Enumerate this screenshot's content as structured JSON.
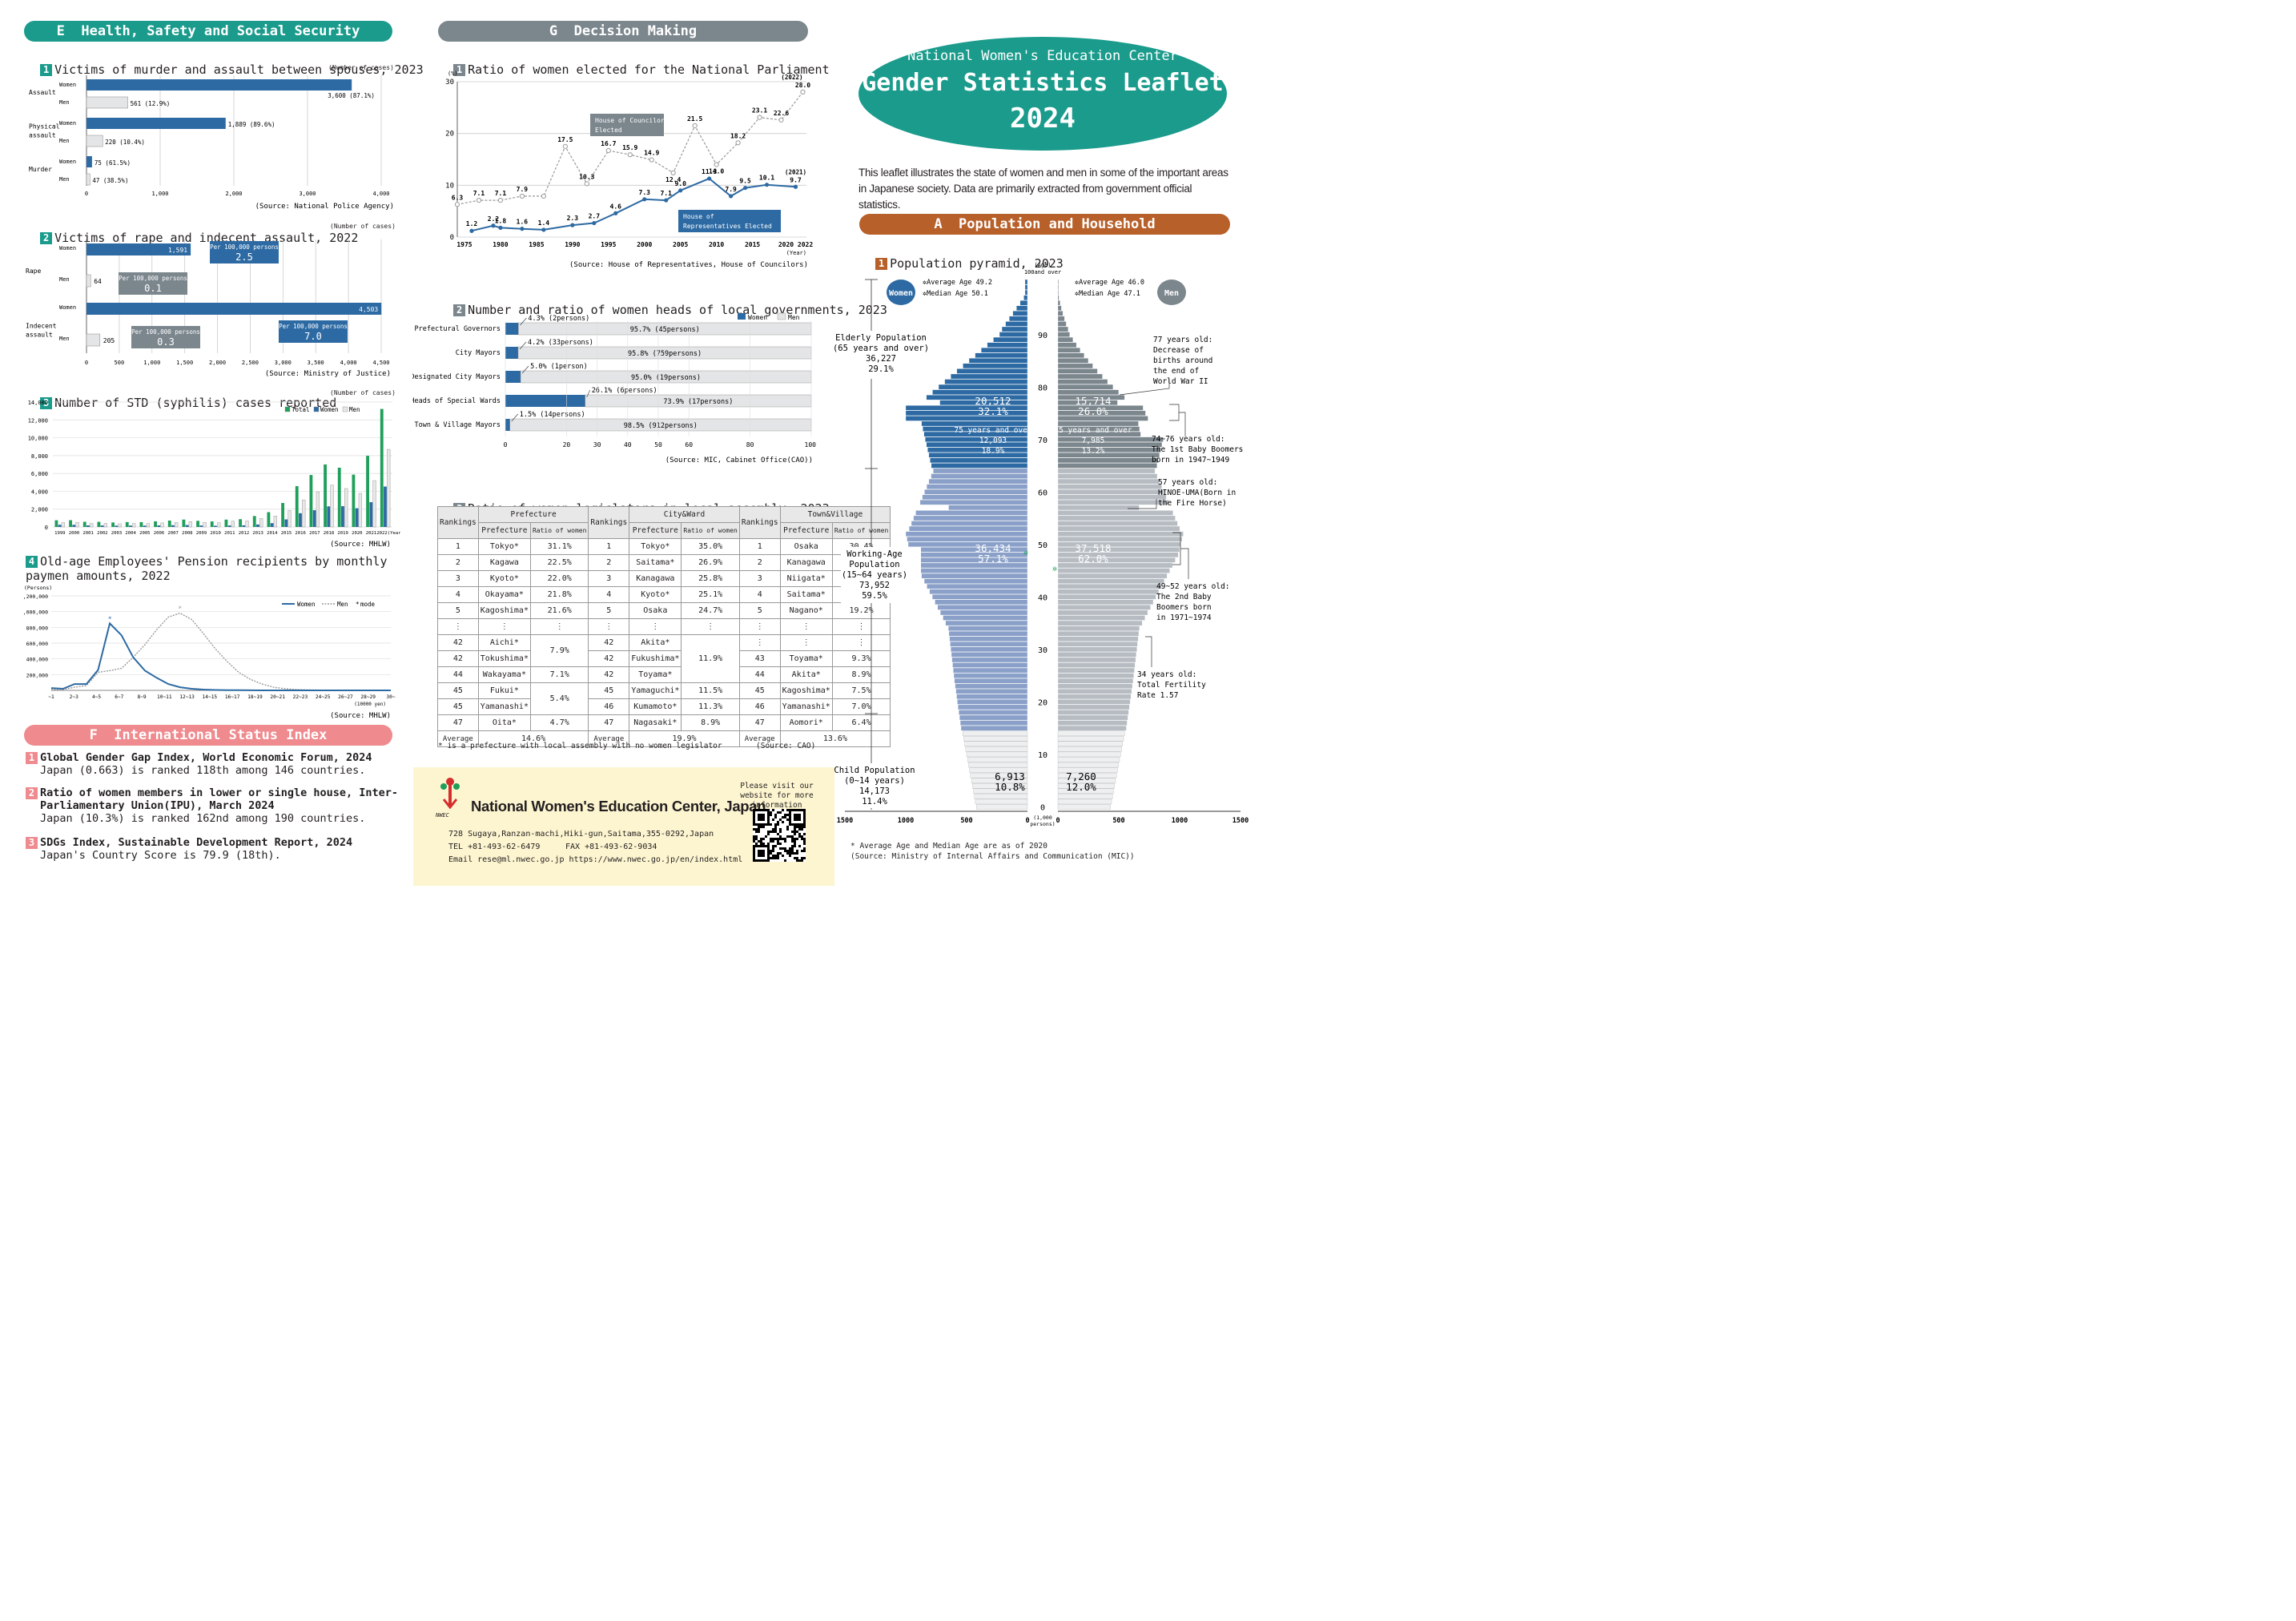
{
  "sections": {
    "E": "E  Health, Safety and Social Security",
    "F": "F  International Status Index",
    "G": "G  Decision Making",
    "A": "A  Population and Household"
  },
  "header": {
    "org": "National Women's Education Center",
    "title": "Gender Statistics Leaflet",
    "year": "2024",
    "intro": "This leaflet illustrates the state of women and men in some of the important areas in Japanese society. Data are primarily extracted from government official statistics."
  },
  "colors": {
    "teal": "#1a9b8c",
    "gray": "#7b868d",
    "pink": "#ef8a8e",
    "brown": "#b8602a",
    "blue": "#2d6aa3",
    "lightgray": "#e4e5e6",
    "green": "#1f9f5a"
  },
  "e1": {
    "num": "1",
    "title": "Victims of murder and assault between spouses, 2023",
    "unit": "(Number of cases)",
    "groups": [
      {
        "label": "Assault",
        "women": 3600,
        "women_label": "3,600 (87.1%)",
        "men": 561,
        "men_label": "561 (12.9%)"
      },
      {
        "label": "Physical assault",
        "women": 1889,
        "women_label": "1,889 (89.6%)",
        "men": 220,
        "men_label": "220 (10.4%)"
      },
      {
        "label": "Murder",
        "women": 75,
        "women_label": "75 (61.5%)",
        "men": 47,
        "men_label": "47 (38.5%)"
      }
    ],
    "women_label": "Women",
    "men_label": "Men",
    "ticks": [
      "0",
      "1,000",
      "2,000",
      "3,000",
      "4,000"
    ],
    "source": "(Source: National Police Agency)"
  },
  "e2": {
    "num": "2",
    "title": "Victims of rape and indecent assault, 2022",
    "unit": "(Number of cases)",
    "rape_label": "Rape",
    "indecent_label": "Indecent assault",
    "rape_women": 1591,
    "rape_women_label": "1,591",
    "rape_men": 64,
    "rape_men_label": "64",
    "ind_women": 4503,
    "ind_women_label": "4,503",
    "ind_men": 205,
    "ind_men_label": "205",
    "per": "Per 100,000 persons",
    "rape_women_rate": "2.5",
    "rape_men_rate": "0.1",
    "ind_women_rate": "7.0",
    "ind_men_rate": "0.3",
    "ticks": [
      "0",
      "500",
      "1,000",
      "1,500",
      "2,000",
      "2,500",
      "3,000",
      "3,500",
      "4,000",
      "4,500"
    ],
    "source": "(Source: Ministry of Justice)"
  },
  "e3": {
    "num": "3",
    "title": "Number of STD (syphilis) cases reported",
    "unit": "(Number of cases)",
    "legend": [
      "Total",
      "Women",
      "Men"
    ],
    "years": [
      "1999",
      "2000",
      "2001",
      "2002",
      "2003",
      "2004",
      "2005",
      "2006",
      "2007",
      "2008",
      "2009",
      "2010",
      "2011",
      "2012",
      "2013",
      "2014",
      "2015",
      "2016",
      "2017",
      "2018",
      "2019",
      "2020",
      "2021",
      "2022(Year)"
    ],
    "total": [
      753,
      759,
      585,
      575,
      509,
      549,
      543,
      637,
      719,
      831,
      691,
      621,
      827,
      875,
      1228,
      1661,
      2690,
      4575,
      5826,
      7007,
      6642,
      5867,
      7978,
      13228
    ],
    "women": [
      250,
      240,
      180,
      170,
      150,
      160,
      150,
      180,
      200,
      220,
      170,
      140,
      170,
      190,
      280,
      430,
      850,
      1540,
      1880,
      2310,
      2330,
      2100,
      2780,
      4530
    ],
    "men": [
      500,
      520,
      400,
      400,
      360,
      390,
      390,
      460,
      520,
      610,
      520,
      480,
      650,
      680,
      950,
      1230,
      1840,
      3040,
      3940,
      4700,
      4310,
      3770,
      5200,
      8700
    ],
    "yticks": [
      "0",
      "2,000",
      "4,000",
      "6,000",
      "8,000",
      "10,000",
      "12,000",
      "14,000"
    ],
    "source": "(Source: MHLW)"
  },
  "e4": {
    "num": "4",
    "title": "Old-age Employees' Pension recipients by monthly paymen amounts, 2022",
    "yunit": "(Persons)",
    "legend": [
      "Women",
      "Men",
      "mode"
    ],
    "yticks": [
      "200,000",
      "400,000",
      "600,000",
      "800,000",
      "1,000,000",
      "1,200,000"
    ],
    "xticks": [
      "~1",
      "2~3",
      "4~5",
      "6~7",
      "8~9",
      "10~11",
      "12~13",
      "14~15",
      "16~17",
      "18~19",
      "20~21",
      "22~23",
      "24~25",
      "26~27",
      "28~29",
      "30~"
    ],
    "xunit": "(10000 yen)",
    "women": [
      30000,
      20000,
      80000,
      80000,
      260000,
      850000,
      700000,
      420000,
      250000,
      160000,
      80000,
      40000,
      20000,
      10000,
      5000,
      3000,
      2000,
      1000,
      500,
      300,
      200,
      100,
      100,
      100,
      100,
      100,
      100,
      100,
      100,
      100
    ],
    "men": [
      10000,
      10000,
      40000,
      60000,
      230000,
      250000,
      280000,
      420000,
      580000,
      770000,
      930000,
      980000,
      900000,
      720000,
      530000,
      370000,
      230000,
      140000,
      80000,
      40000,
      20000,
      10000,
      5000,
      3000,
      2000,
      1000,
      500,
      300,
      200,
      100
    ],
    "source": "(Source: MHLW)"
  },
  "f": {
    "items": [
      {
        "num": "1",
        "head": "Global Gender Gap Index, World Economic Forum, 2024",
        "body": "Japan (0.663) is ranked 118th among 146 countries."
      },
      {
        "num": "2",
        "head": "Ratio of women members in lower or single house, Inter-\nParliamentary Union(IPU), March 2024",
        "body": "Japan (10.3%) is ranked 162nd among 190 countries."
      },
      {
        "num": "3",
        "head": "SDGs Index, Sustainable Development Report, 2024",
        "body": "Japan's Country Score is 79.9 (18th)."
      }
    ]
  },
  "g1": {
    "num": "1",
    "title": "Ratio of women elected for the National Parliament",
    "yunit": "(%)",
    "yticks": [
      "0",
      "10",
      "20",
      "30"
    ],
    "xticks": [
      "1975",
      "1980",
      "1985",
      "1990",
      "1995",
      "2000",
      "2005",
      "2010",
      "2015",
      "2020 2022"
    ],
    "xunit": "(Year)",
    "councillors_label": "House of Councilors Elected",
    "representatives_label": "House of Representatives Elected",
    "councillors": [
      [
        1974,
        6.3
      ],
      [
        1977,
        7.1
      ],
      [
        1980,
        7.1
      ],
      [
        1983,
        7.9
      ],
      [
        1986,
        7.9
      ],
      [
        1989,
        17.5
      ],
      [
        1992,
        10.3
      ],
      [
        1995,
        16.7
      ],
      [
        1998,
        15.9
      ],
      [
        2001,
        14.9
      ],
      [
        2004,
        12.4
      ],
      [
        2007,
        21.5
      ],
      [
        2010,
        14.0
      ],
      [
        2013,
        18.2
      ],
      [
        2016,
        23.1
      ],
      [
        2019,
        22.6
      ],
      [
        2022,
        28.0
      ]
    ],
    "representatives": [
      [
        1976,
        1.2
      ],
      [
        1979,
        2.2
      ],
      [
        1980,
        1.8
      ],
      [
        1983,
        1.6
      ],
      [
        1986,
        1.4
      ],
      [
        1990,
        2.3
      ],
      [
        1993,
        2.7
      ],
      [
        1996,
        4.6
      ],
      [
        2000,
        7.3
      ],
      [
        2003,
        7.1
      ],
      [
        2005,
        9.0
      ],
      [
        2009,
        11.3
      ],
      [
        2012,
        7.9
      ],
      [
        2014,
        9.5
      ],
      [
        2017,
        10.1
      ],
      [
        2021,
        9.7
      ]
    ],
    "c_labels": [
      "6.3",
      "7.1",
      "7.1",
      "7.9",
      "",
      "17.5",
      "10.3",
      "16.7",
      "15.9",
      "14.9",
      "12.4",
      "21.5",
      "14.0",
      "18.2",
      "23.1",
      "22.6",
      "28.0"
    ],
    "r_labels": [
      "1.2",
      "2.2",
      "1.8",
      "1.6",
      "1.4",
      "2.3",
      "2.7",
      "4.6",
      "7.3",
      "7.1",
      "9.0",
      "11.3",
      "7.9",
      "9.5",
      "10.1",
      "9.7"
    ],
    "c_last": "(2022)",
    "r_last": "(2021)",
    "source": "(Source: House of Representatives, House of Councilors)"
  },
  "g2": {
    "num": "2",
    "title": "Number and ratio of women heads of local governments, 2023",
    "legend": [
      "Women",
      "Men"
    ],
    "rows": [
      {
        "label": "Prefectural Governors",
        "w": 4.3,
        "wl": "4.3% (2persons)",
        "ml": "95.7% (45persons)"
      },
      {
        "label": "City Mayors",
        "w": 4.2,
        "wl": "4.2% (33persons)",
        "ml": "95.8% (759persons)"
      },
      {
        "label": "Designated City Mayors",
        "w": 5.0,
        "wl": "5.0% (1person)",
        "ml": "95.0% (19persons)"
      },
      {
        "label": "Heads of Special Wards",
        "w": 26.1,
        "wl": "26.1% (6persons)",
        "ml": "73.9% (17persons)"
      },
      {
        "label": "Town & Village Mayors",
        "w": 1.5,
        "wl": "1.5% (14persons)",
        "ml": "98.5% (912persons)"
      }
    ],
    "xticks": [
      "0",
      "20",
      "30",
      "40",
      "50",
      "60",
      "80",
      "100(%)"
    ],
    "source": "(Source: MIC, Cabinet Office(CAO))"
  },
  "g3": {
    "num": "3",
    "title": "Ratio of women legislators in local assembly, 2023",
    "groups": [
      "Prefecture",
      "City&Ward",
      "Town&Village"
    ],
    "col_rank": "Rankings",
    "col_pref": "Prefecture",
    "col_ratio": "Ratio of women",
    "rows": [
      [
        "1",
        "Tokyo*",
        "31.1%",
        "1",
        "Tokyo*",
        "35.0%",
        "1",
        "Osaka",
        "30.4%"
      ],
      [
        "2",
        "Kagawa",
        "22.5%",
        "2",
        "Saitama*",
        "26.9%",
        "2",
        "Kanagawa",
        "24.4%"
      ],
      [
        "3",
        "Kyoto*",
        "22.0%",
        "3",
        "Kanagawa",
        "25.8%",
        "3",
        "Niigata*",
        "21.6%"
      ],
      [
        "4",
        "Okayama*",
        "21.8%",
        "4",
        "Kyoto*",
        "25.1%",
        "4",
        "Saitama*",
        "20.0%"
      ],
      [
        "5",
        "Kagoshima*",
        "21.6%",
        "5",
        "Osaka",
        "24.7%",
        "5",
        "Nagano*",
        "19.2%"
      ],
      [
        "⋮",
        "⋮",
        "⋮",
        "⋮",
        "⋮",
        "⋮",
        "⋮",
        "⋮",
        "⋮"
      ],
      [
        "42",
        "Aichi*",
        "7.9%",
        "42",
        "Akita*",
        "11.9%",
        "⋮",
        "⋮",
        "⋮"
      ],
      [
        "42",
        "Tokushima*",
        "",
        "42",
        "Fukushima*",
        "",
        "43",
        "Toyama*",
        "9.3%"
      ],
      [
        "44",
        "Wakayama*",
        "7.1%",
        "42",
        "Toyama*",
        "",
        "44",
        "Akita*",
        "8.9%"
      ],
      [
        "45",
        "Fukui*",
        "5.4%",
        "45",
        "Yamaguchi*",
        "11.5%",
        "45",
        "Kagoshima*",
        "7.5%"
      ],
      [
        "45",
        "Yamanashi*",
        "",
        "46",
        "Kumamoto*",
        "11.3%",
        "46",
        "Yamanashi*",
        "7.0%"
      ],
      [
        "47",
        "Oita*",
        "4.7%",
        "47",
        "Nagasaki*",
        "8.9%",
        "47",
        "Aomori*",
        "6.4%"
      ]
    ],
    "avg_label": "Average",
    "avg": [
      "14.6%",
      "19.9%",
      "13.6%"
    ],
    "note": "* is a prefecture with local assembly with no women legislator",
    "source": "(Source: CAO)"
  },
  "nwec": {
    "name": "National Women's Education Center, Japan",
    "logo": "NWEC",
    "address": "728 Sugaya,Ranzan-machi,Hiki-gun,Saitama,355-0292,Japan",
    "tel": "TEL +81-493-62-6479",
    "fax": "FAX +81-493-62-9034",
    "email": "Email rese@ml.nwec.go.jp  https://www.nwec.go.jp/en/index.html",
    "visit": "Please visit our website for more information"
  },
  "a1": {
    "num": "1",
    "title": "Population pyramid, 2023",
    "women_label": "Women",
    "men_label": "Men",
    "w_avg": "Average Age 49.2",
    "w_med": "Median Age  50.1",
    "m_avg": "Average Age 46.0",
    "m_med": "Median Age  47.1",
    "age_head": "(Age)",
    "age_top": "100and over",
    "age_ticks": [
      "0",
      "10",
      "20",
      "30",
      "40",
      "50",
      "60",
      "70",
      "80",
      "90"
    ],
    "elderly": "Elderly Population\n(65 years and over)\n36,227\n29.1%",
    "working": "Working-Age\nPopulation\n(15~64 years)\n73,952\n59.5%",
    "child": "Child Population\n(0~14 years)\n14,173\n11.4%",
    "w_elderly": "20,512\n32.1%",
    "w_75": "75 years and over\n12,093\n18.9%",
    "m_elderly": "15,714\n26.0%",
    "m_75": "75 years and over\n7,985\n13.2%",
    "w_working": "36,434\n57.1%",
    "m_working": "37,518\n62.0%",
    "w_child": "6,913\n10.8%",
    "m_child": "7,260\n12.0%",
    "notes": [
      "77 years old:\nDecrease of\nbirths around\nthe end of\nWorld War II",
      "74~76 years old:\nThe 1st Baby Boomers\nborn in 1947~1949",
      "57 years old:\nHINOE-UMA(Born in\nthe Fire Horse)",
      "49~52 years old:\nThe 2nd Baby\nBoomers born\nin 1971~1974",
      "34 years old:\nTotal Fertility\nRate 1.57"
    ],
    "xticks_left": [
      "1500",
      "1000",
      "500",
      "0"
    ],
    "xticks_right": [
      "0",
      "500",
      "1000",
      "1500"
    ],
    "xunit": "(1,000 persons)",
    "footnote": "* Average Age and Median Age are as of 2020",
    "source": "(Source: Ministry of Internal Affairs and Communication (MIC))"
  }
}
